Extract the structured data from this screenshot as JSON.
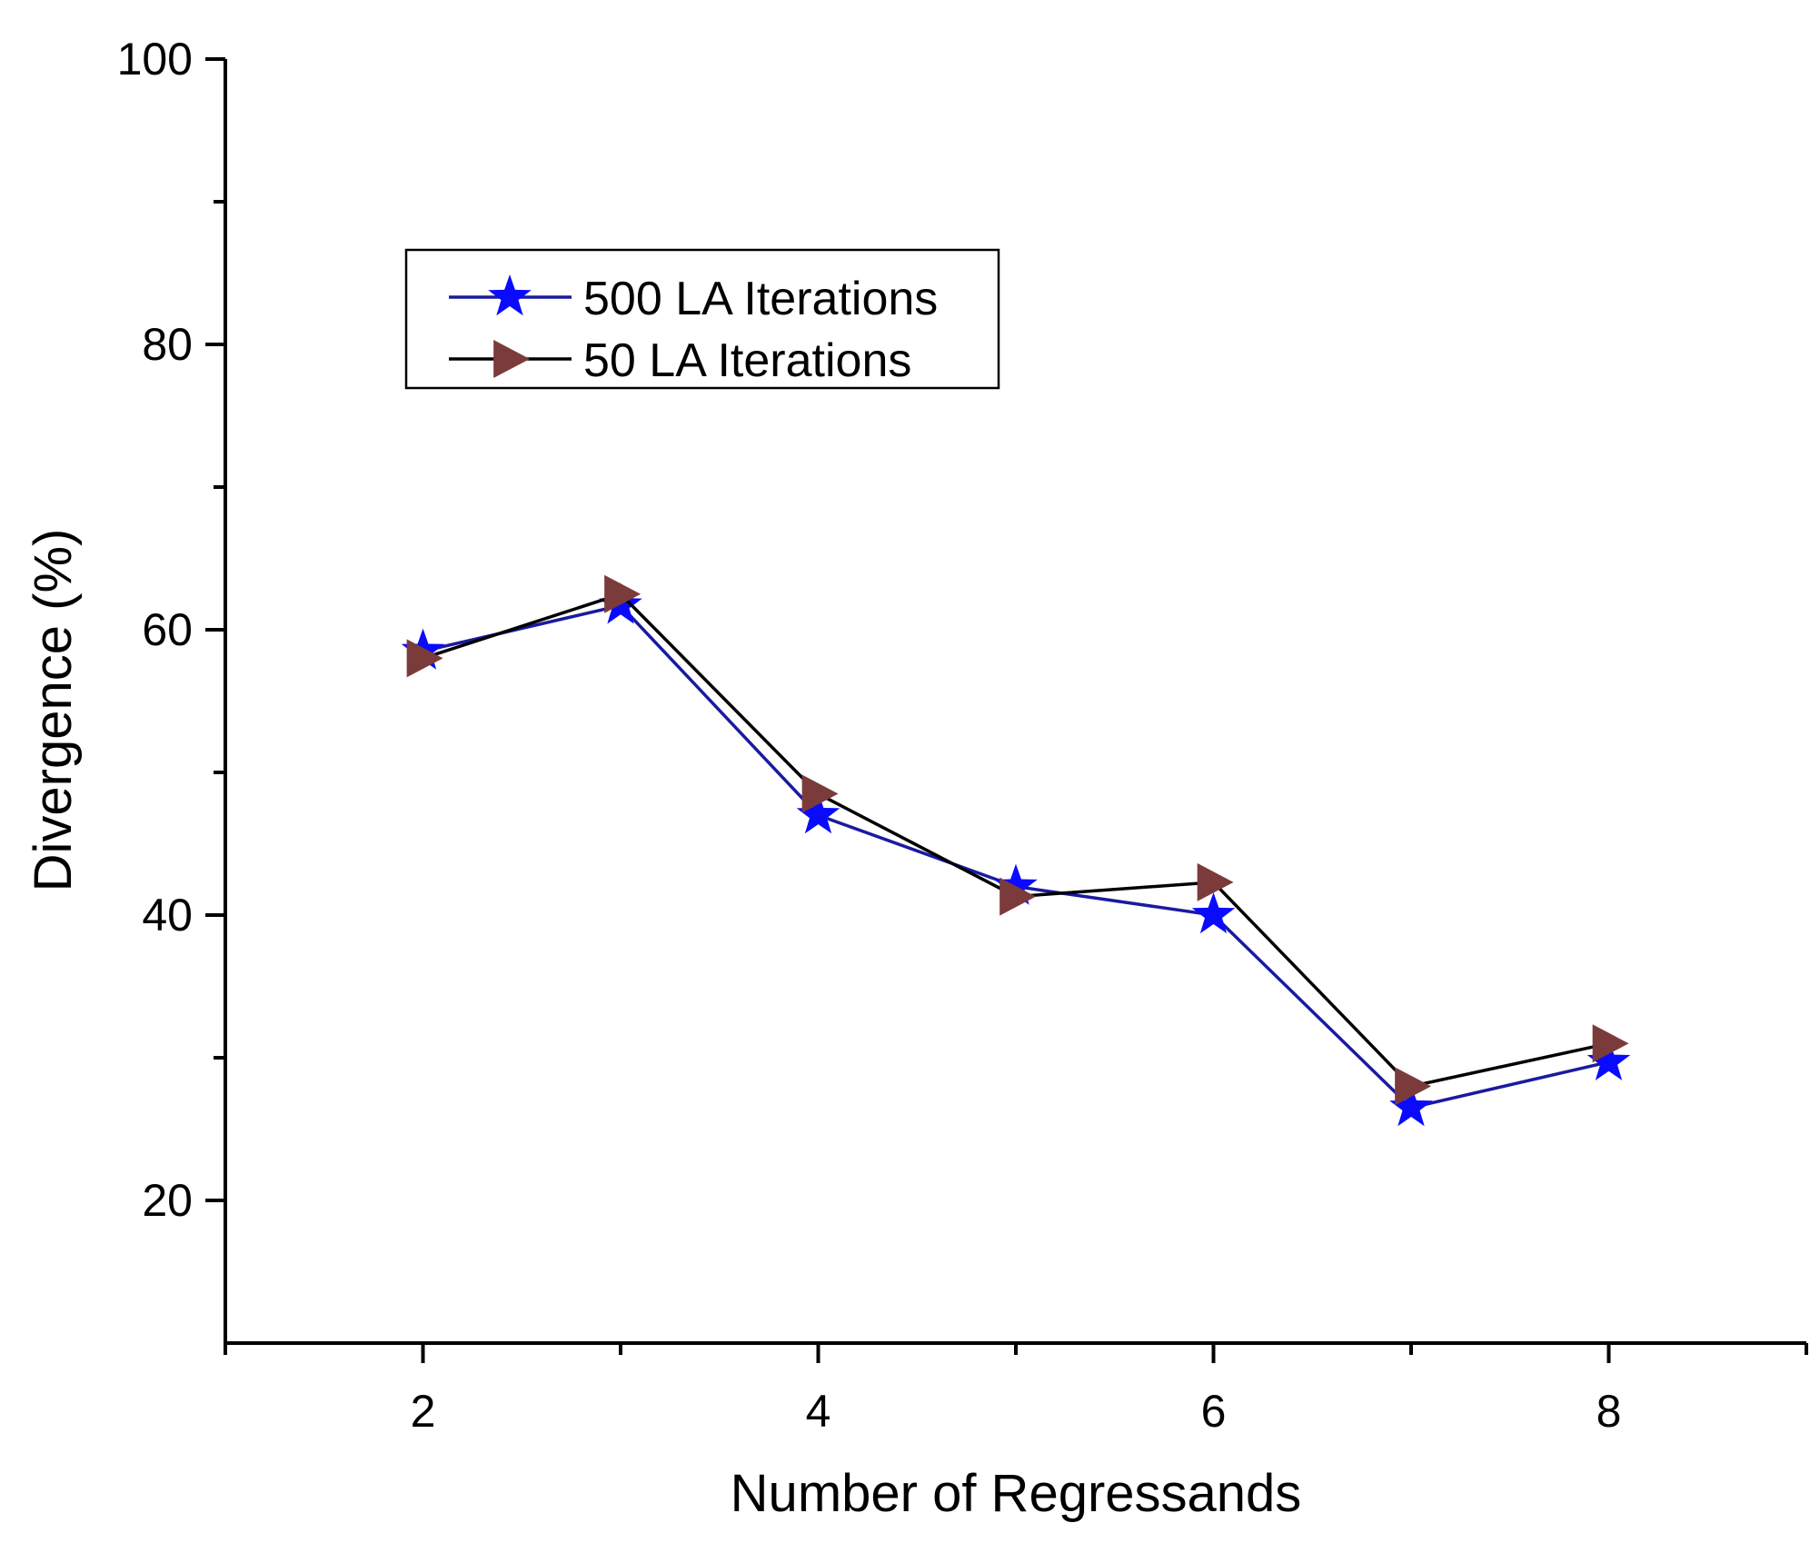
{
  "chart_data": {
    "type": "line",
    "title": "",
    "xlabel": "Number of Regressands",
    "ylabel": "Divergence (%)",
    "xlim": [
      1,
      9
    ],
    "ylim": [
      10,
      100
    ],
    "xticks": [
      2,
      4,
      6,
      8
    ],
    "yticks": [
      20,
      40,
      60,
      80,
      100
    ],
    "x_minor_ticks": [
      1,
      3,
      5,
      7,
      9
    ],
    "y_minor_ticks": [
      30,
      50,
      70,
      90
    ],
    "grid": false,
    "legend_position": "upper-left",
    "series": [
      {
        "name": "500 LA Iterations",
        "marker": "star",
        "line_color": "#1a1aa0",
        "marker_color": "#0a0aff",
        "x": [
          2,
          3,
          4,
          5,
          6,
          7,
          8
        ],
        "values": [
          58.5,
          61.7,
          47.0,
          42.0,
          40.0,
          26.5,
          29.7
        ]
      },
      {
        "name": "50 LA Iterations",
        "marker": "triangle-right",
        "line_color": "#000000",
        "marker_color": "#7b3b3b",
        "x": [
          2,
          3,
          4,
          5,
          6,
          7,
          8
        ],
        "values": [
          58.0,
          62.5,
          48.5,
          41.3,
          42.3,
          28.0,
          31.0
        ]
      }
    ]
  }
}
